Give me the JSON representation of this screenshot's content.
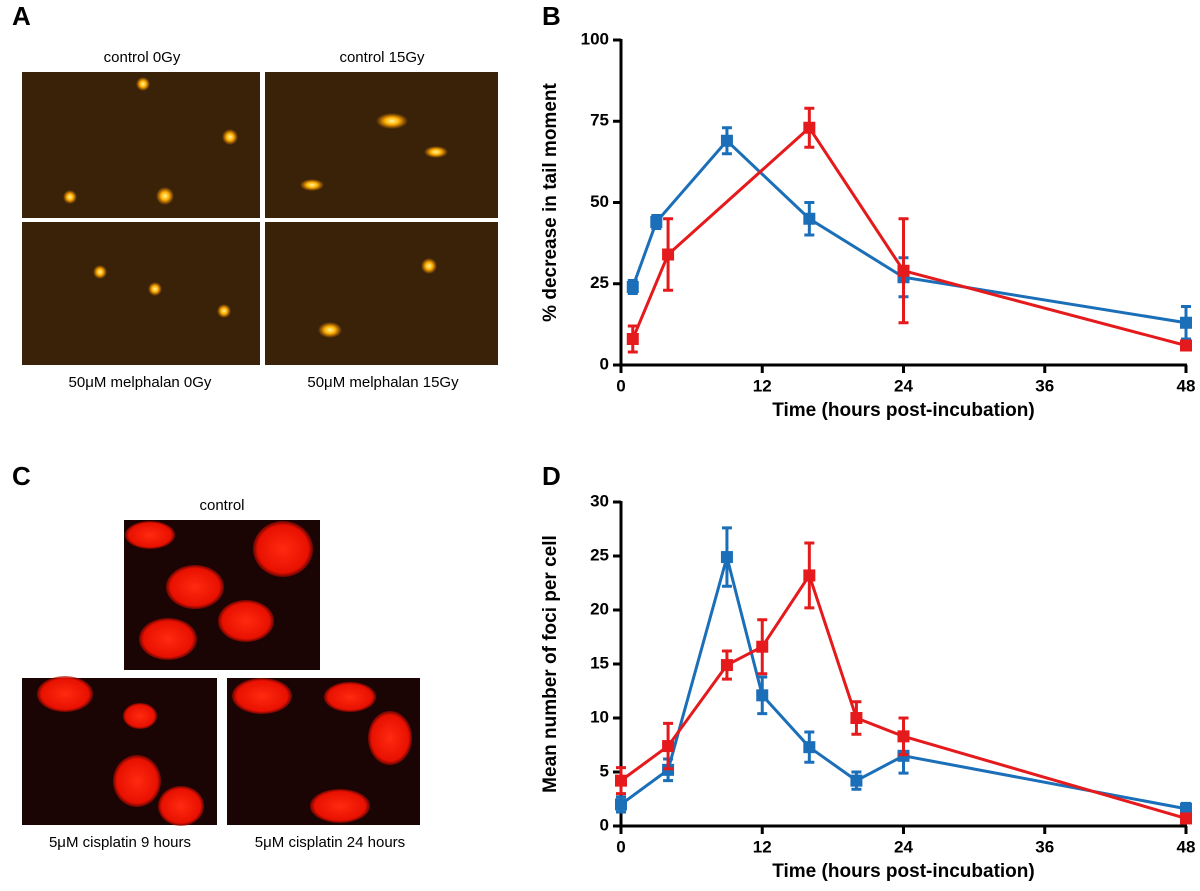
{
  "panel_labels": [
    "A",
    "B",
    "C",
    "D"
  ],
  "panel_a_captions": [
    "control 0Gy",
    "control 15Gy",
    "50μM melphalan 0Gy",
    "50μM melphalan 15Gy"
  ],
  "panel_c_captions": [
    "control",
    "5μM cisplatin 9 hours",
    "5μM cisplatin 24 hours"
  ],
  "chart_data": [
    {
      "type": "line",
      "x_label": "Time (hours post-incubation)",
      "y_label": "% decrease in tail moment",
      "xlim": [
        0,
        48
      ],
      "xticks": [
        0,
        12,
        24,
        36,
        48
      ],
      "ylim": [
        0,
        100
      ],
      "yticks": [
        0,
        25,
        50,
        75,
        100
      ],
      "series": [
        {
          "color": "#1b6fb8",
          "x": [
            1,
            3,
            9,
            16,
            24,
            48
          ],
          "values": [
            24,
            44,
            69,
            45,
            27,
            13
          ],
          "errors": [
            2,
            2,
            4,
            5,
            6,
            5
          ]
        },
        {
          "color": "#e41a1c",
          "x": [
            1,
            4,
            16,
            24,
            48
          ],
          "values": [
            8,
            34,
            73,
            29,
            6
          ],
          "errors": [
            4,
            11,
            6,
            16,
            1
          ]
        }
      ]
    },
    {
      "type": "line",
      "x_label": "Time (hours post-incubation)",
      "y_label": "Mean number of foci per cell",
      "xlim": [
        0,
        48
      ],
      "xticks": [
        0,
        12,
        24,
        36,
        48
      ],
      "ylim": [
        0,
        30
      ],
      "yticks": [
        0,
        5,
        10,
        15,
        20,
        25,
        30
      ],
      "series": [
        {
          "color": "#1b6fb8",
          "x": [
            0,
            4,
            9,
            12,
            16,
            20,
            24,
            48
          ],
          "values": [
            2,
            5.2,
            24.9,
            12.1,
            7.3,
            4.2,
            6.5,
            1.6
          ],
          "errors": [
            0.7,
            1,
            2.7,
            1.7,
            1.4,
            0.8,
            1.6,
            0.5
          ]
        },
        {
          "color": "#e41a1c",
          "x": [
            0,
            4,
            9,
            12,
            16,
            20,
            24,
            48
          ],
          "values": [
            4.2,
            7.4,
            14.9,
            16.6,
            23.2,
            10,
            8.3,
            0.7
          ],
          "errors": [
            1.2,
            2.1,
            1.3,
            2.5,
            3,
            1.5,
            1.7,
            0.3
          ]
        }
      ]
    }
  ]
}
